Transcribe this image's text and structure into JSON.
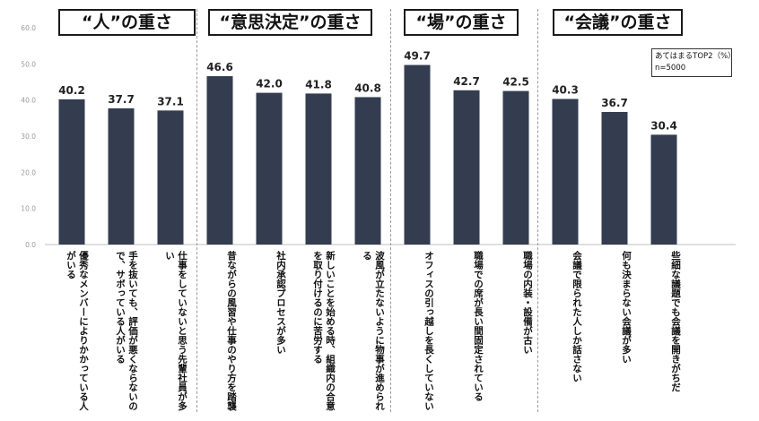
{
  "chart_data": {
    "type": "bar",
    "groups": [
      {
        "label": "“人”の重さ",
        "categories": [
          0,
          1,
          2
        ]
      },
      {
        "label": "“意思決定”の重さ",
        "categories": [
          3,
          4,
          5,
          6
        ]
      },
      {
        "label": "“場”の重さ",
        "categories": [
          7,
          8,
          9
        ]
      },
      {
        "label": "“会議”の重さ",
        "categories": [
          10,
          11,
          12
        ]
      }
    ],
    "categories": [
      "優秀なメンバーによりかかっている人がいる",
      "手を抜いても、評価が悪くならないので、サボっている人がいる",
      "仕事をしていないと思う先輩社員が多い",
      "昔ながらの風習や仕事のやり方を踏襲",
      "社内承認プロセスが多い",
      "新しいことを始める時、組織内の合意を取り付けるのに苦労する",
      "波風が立たないように物事が進められる",
      "オフィスの引っ越しを長くしていない",
      "職場での席が長い間固定されている",
      "職場の内装・設備が古い",
      "会議で限られた人しか話さない",
      "何も決まらない会議が多い",
      "些細な議題でも会議を開きがちだ"
    ],
    "values": [
      40.2,
      37.7,
      37.1,
      46.6,
      42.0,
      41.8,
      40.8,
      49.7,
      42.7,
      42.5,
      40.3,
      36.7,
      30.4
    ],
    "value_labels": [
      "40.2",
      "37.7",
      "37.1",
      "46.6",
      "42.0",
      "41.8",
      "40.8",
      "49.7",
      "42.7",
      "42.5",
      "40.3",
      "36.7",
      "30.4"
    ],
    "ylim": [
      0,
      60
    ],
    "yticks": [
      "0.0",
      "10.0",
      "20.0",
      "30.0",
      "40.0",
      "50.0",
      "60.0"
    ],
    "legend": {
      "line1": "あてはまるTOP2（%）",
      "line2": "n=5000"
    },
    "bar_color": "#333d4f",
    "grid": false
  }
}
